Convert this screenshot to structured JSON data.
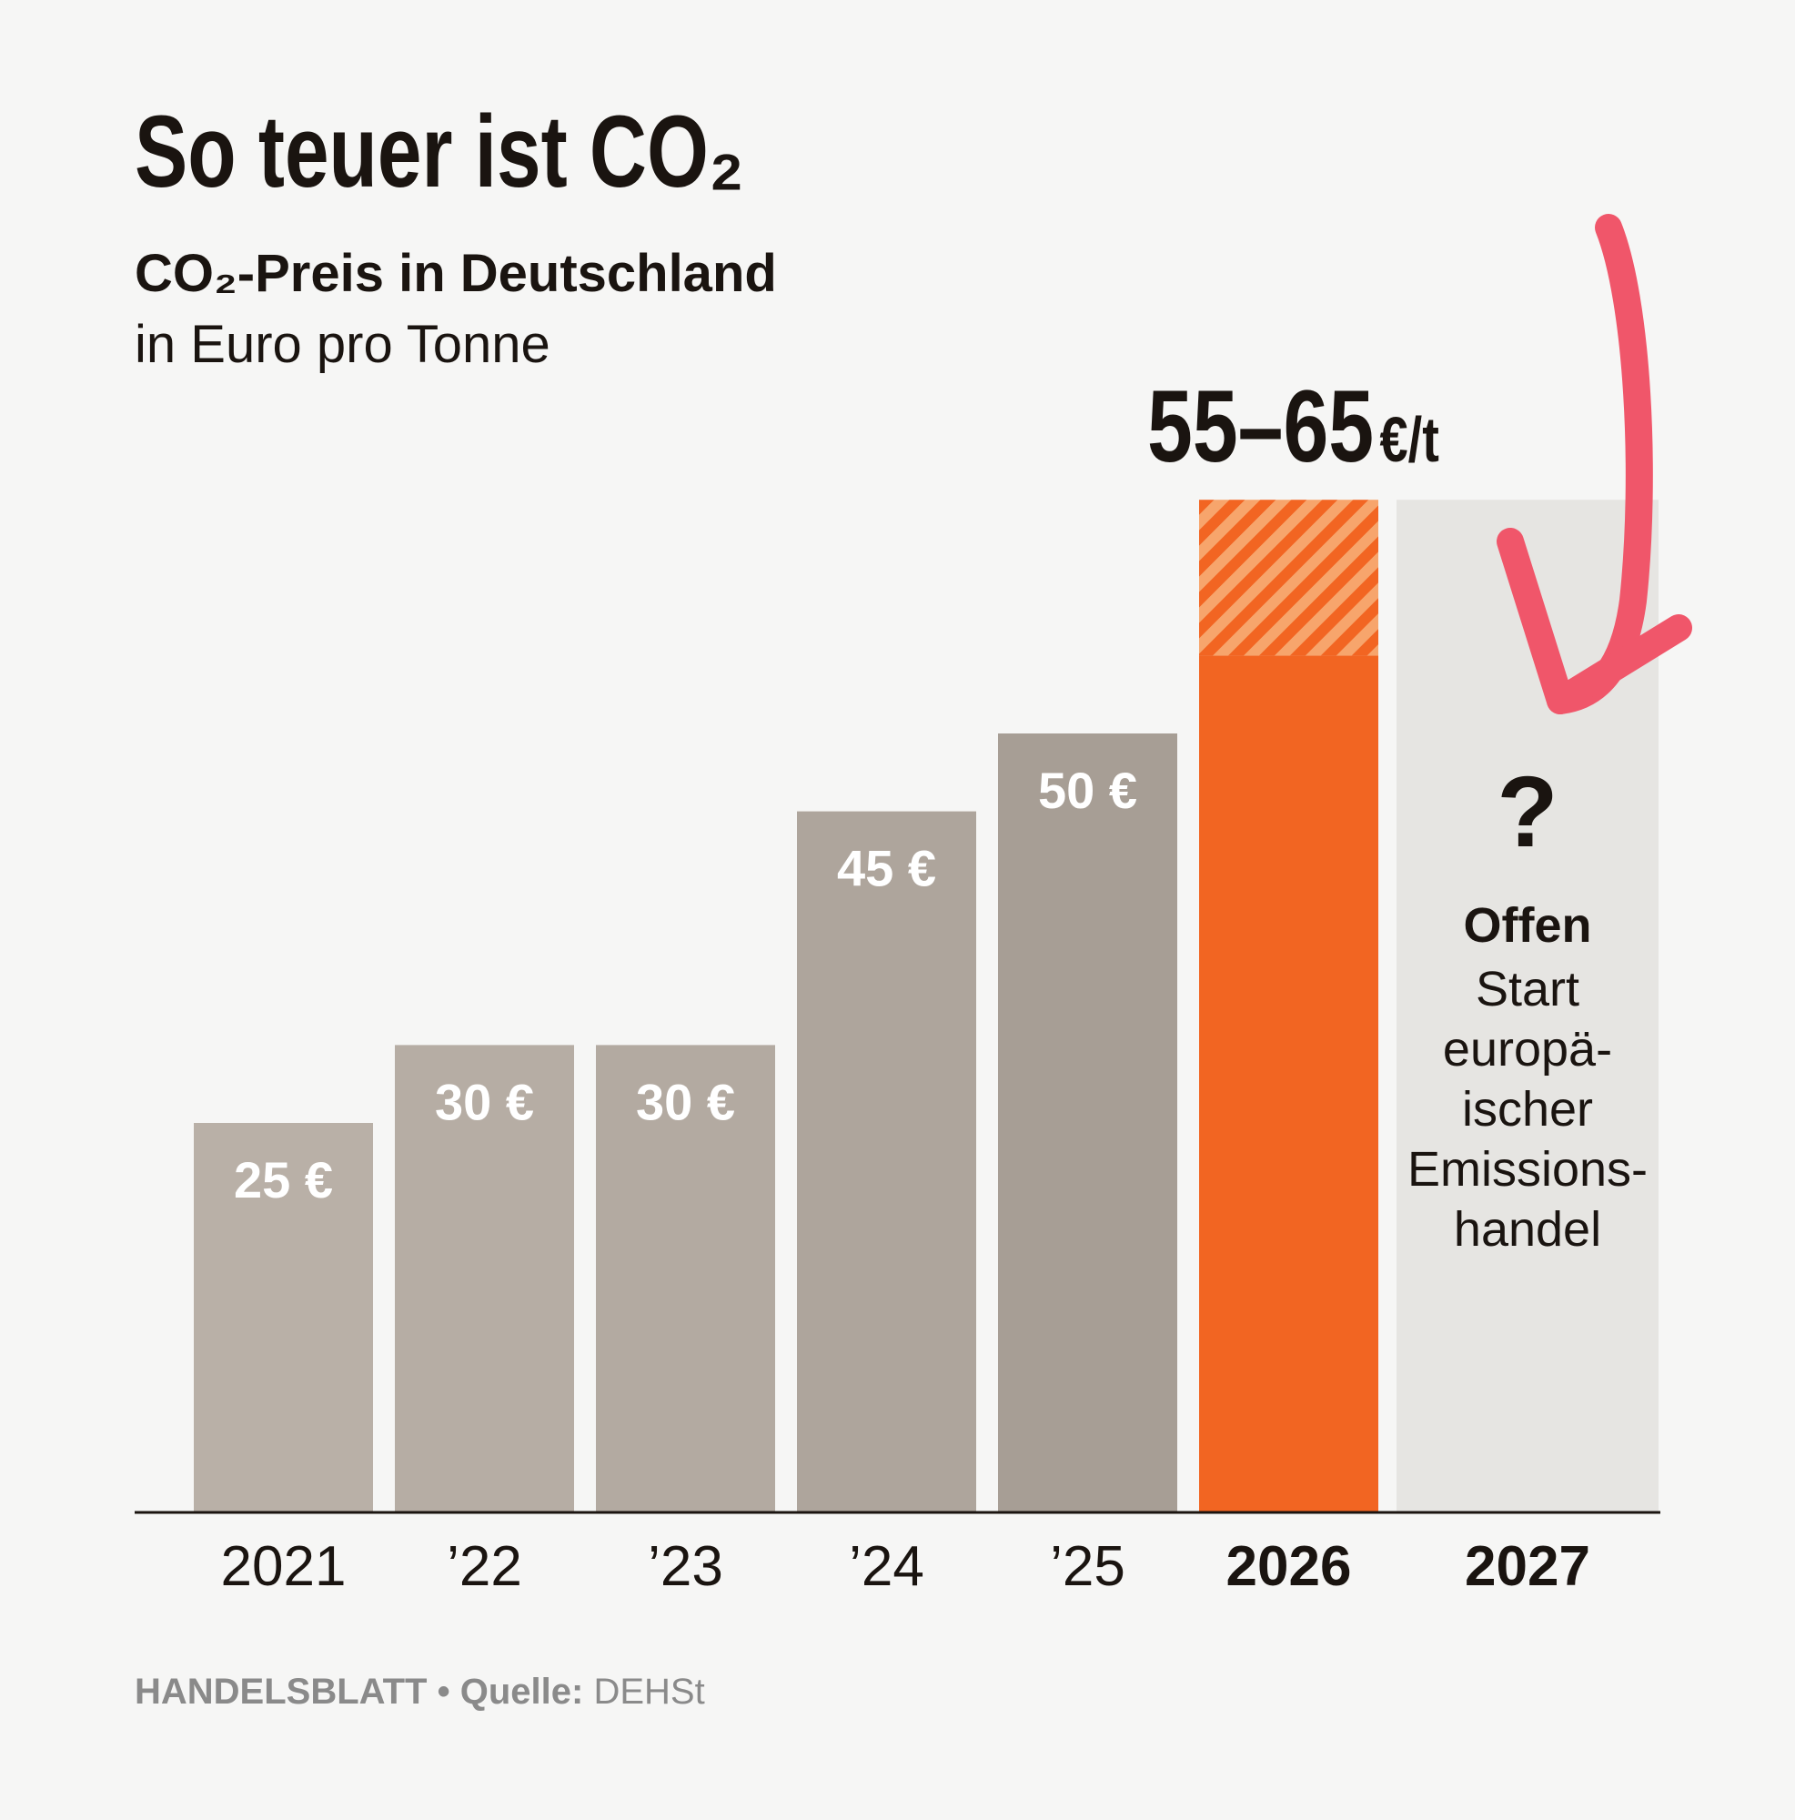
{
  "chart_data": {
    "type": "bar",
    "title": "So teuer ist CO₂",
    "subtitle": "CO₂-Preis in Deutschland",
    "unit_note": "in Euro pro Tonne",
    "categories": [
      "2021",
      "’22",
      "’23",
      "’24",
      "’25",
      "2026",
      "2027"
    ],
    "series": [
      {
        "colors": [
          "#b9b0a7",
          "#b6ada4",
          "#b3aaa1",
          "#aea59c",
          "#a79e95",
          "#f26522",
          null
        ],
        "values": [
          25,
          30,
          30,
          45,
          50,
          55,
          null
        ],
        "value_labels": [
          "25 €",
          "30 €",
          "30 €",
          "45 €",
          "50 €",
          null,
          null
        ]
      },
      {
        "color": "#f26522",
        "pattern": "hatch",
        "values": [
          null,
          null,
          null,
          null,
          null,
          10,
          null
        ]
      }
    ],
    "ylim": [
      0,
      97
    ],
    "range_label": {
      "value": "55–65",
      "unit": "€/t"
    },
    "open_note": {
      "mark": "?",
      "heading": "Offen",
      "lines": [
        "Start",
        "europä-",
        "ischer",
        "Emissions-",
        "handel"
      ]
    },
    "footer": {
      "brand": "HANDELSBLATT",
      "separator": "•",
      "source_label": "Quelle:",
      "source": "DEHSt"
    }
  }
}
